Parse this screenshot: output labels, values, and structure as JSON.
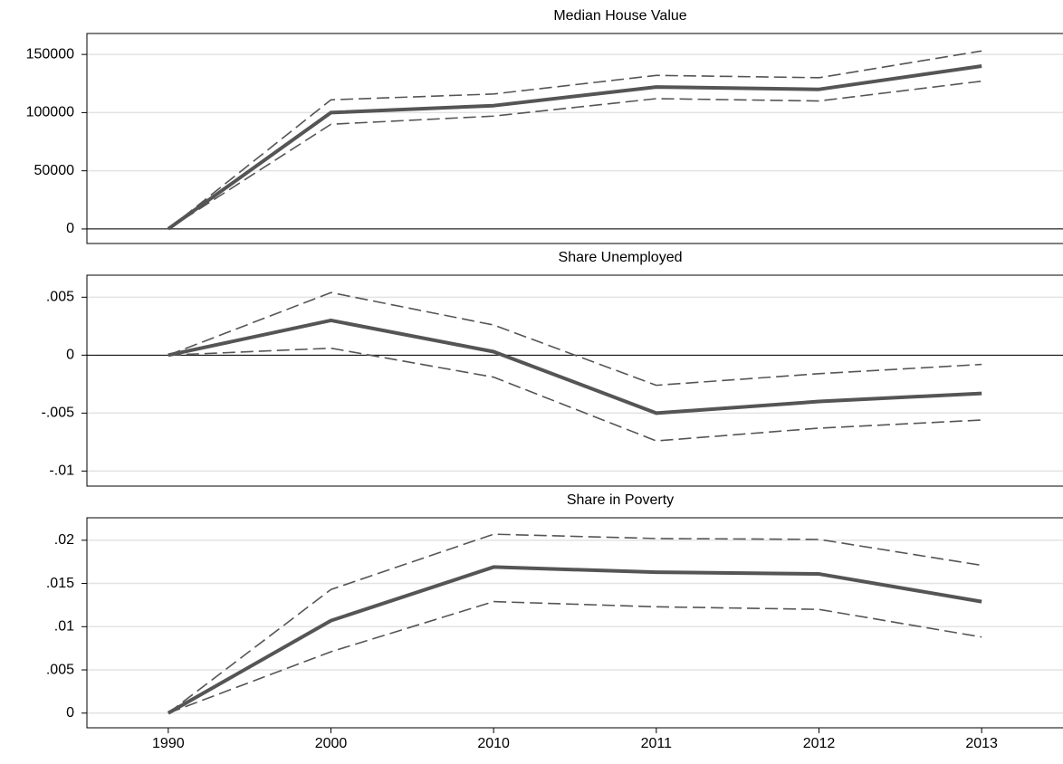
{
  "chart_data": [
    {
      "type": "line",
      "title": "Median House Value",
      "series": [
        {
          "color": "#555555",
          "style": "solid",
          "values": [
            0,
            100000,
            106000,
            122000,
            120000,
            140000
          ]
        },
        {
          "color": "#555555",
          "style": "dashed",
          "values": [
            0,
            111000,
            116000,
            132000,
            130000,
            153000
          ]
        },
        {
          "color": "#555555",
          "style": "dashed",
          "values": [
            0,
            90000,
            97000,
            112000,
            110000,
            127000
          ]
        }
      ],
      "ylim": [
        -12500,
        168000
      ],
      "yticks": [
        0,
        50000,
        100000,
        150000
      ],
      "grid": true,
      "zero_line": true
    },
    {
      "type": "line",
      "title": "Share Unemployed",
      "series": [
        {
          "color": "#555555",
          "style": "solid",
          "values": [
            0,
            0.003,
            0.0003,
            -0.005,
            -0.004,
            -0.0033
          ]
        },
        {
          "color": "#555555",
          "style": "dashed",
          "values": [
            0,
            0.0054,
            0.0026,
            -0.0026,
            -0.0016,
            -0.0008
          ]
        },
        {
          "color": "#555555",
          "style": "dashed",
          "values": [
            0,
            0.0006,
            -0.0019,
            -0.0074,
            -0.0063,
            -0.0056
          ]
        }
      ],
      "ylim": [
        -0.0113,
        0.0069
      ],
      "yticks": [
        {
          "value": -0.01,
          "label": "-.01"
        },
        {
          "value": -0.005,
          "label": "-.005"
        },
        0,
        {
          "value": 0.005,
          "label": ".005"
        }
      ],
      "grid": true,
      "zero_line": true
    },
    {
      "type": "line",
      "title": "Share in Poverty",
      "categories": [
        "1990",
        "2000",
        "2010",
        "2011",
        "2012",
        "2013"
      ],
      "series": [
        {
          "color": "#555555",
          "style": "solid",
          "values": [
            0,
            0.0107,
            0.0169,
            0.0163,
            0.0161,
            0.0129
          ]
        },
        {
          "color": "#555555",
          "style": "dashed",
          "values": [
            0,
            0.0143,
            0.0207,
            0.0202,
            0.0201,
            0.0171
          ]
        },
        {
          "color": "#555555",
          "style": "dashed",
          "values": [
            0,
            0.0071,
            0.0129,
            0.0123,
            0.012,
            0.0088
          ]
        }
      ],
      "ylim": [
        -0.0017,
        0.0226
      ],
      "yticks": [
        0,
        {
          "value": 0.005,
          "label": ".005"
        },
        {
          "value": 0.01,
          "label": ".01"
        },
        {
          "value": 0.015,
          "label": ".015"
        },
        {
          "value": 0.02,
          "label": ".02"
        }
      ],
      "grid": true,
      "zero_line": false
    }
  ]
}
